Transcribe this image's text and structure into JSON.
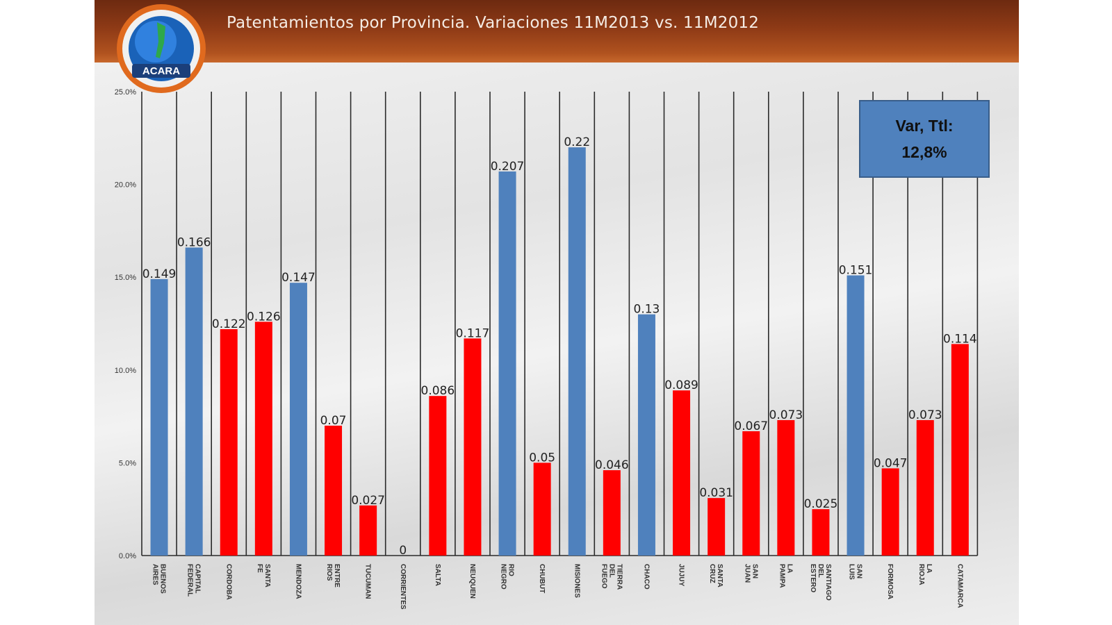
{
  "header": {
    "title": "Patentamientos por Provincia. Variaciones 11M2013 vs. 11M2012",
    "logo_text": "ACARA"
  },
  "var_box": {
    "line1": "Var, Ttl:",
    "line2": "12,8%"
  },
  "colors": {
    "blue": "#4f81bd",
    "red": "#ff0000"
  },
  "chart_data": {
    "type": "bar",
    "ylim": [
      0,
      0.25
    ],
    "yticks": [
      {
        "value": 0.0,
        "label": "0.0%"
      },
      {
        "value": 0.05,
        "label": "5.0%"
      },
      {
        "value": 0.1,
        "label": "10.0%"
      },
      {
        "value": 0.15,
        "label": "15.0%"
      },
      {
        "value": 0.2,
        "label": "20.0%"
      },
      {
        "value": 0.25,
        "label": "25.0%"
      }
    ],
    "categories": [
      {
        "label": [
          "BUENOS",
          "AIRES"
        ],
        "value": 0.149,
        "value_label": "0.149",
        "color": "blue"
      },
      {
        "label": [
          "CAPITAL",
          "FEDERAL"
        ],
        "value": 0.166,
        "value_label": "0.166",
        "color": "blue"
      },
      {
        "label": [
          "CORDOBA"
        ],
        "value": 0.122,
        "value_label": "0.122",
        "color": "red"
      },
      {
        "label": [
          "SANTA",
          "FE"
        ],
        "value": 0.126,
        "value_label": "0.126",
        "color": "red"
      },
      {
        "label": [
          "MENDOZA"
        ],
        "value": 0.147,
        "value_label": "0.147",
        "color": "blue"
      },
      {
        "label": [
          "ENTRE",
          "RIOS"
        ],
        "value": 0.07,
        "value_label": "0.07",
        "color": "red"
      },
      {
        "label": [
          "TUCUMAN"
        ],
        "value": 0.027,
        "value_label": "0.027",
        "color": "red"
      },
      {
        "label": [
          "CORRIENTES"
        ],
        "value": 0.0,
        "value_label": "0",
        "color": "red"
      },
      {
        "label": [
          "SALTA"
        ],
        "value": 0.086,
        "value_label": "0.086",
        "color": "red"
      },
      {
        "label": [
          "NEUQUEN"
        ],
        "value": 0.117,
        "value_label": "0.117",
        "color": "red"
      },
      {
        "label": [
          "RIO",
          "NEGRO"
        ],
        "value": 0.207,
        "value_label": "0.207",
        "color": "blue"
      },
      {
        "label": [
          "CHUBUT"
        ],
        "value": 0.05,
        "value_label": "0.05",
        "color": "red"
      },
      {
        "label": [
          "MISIONES"
        ],
        "value": 0.22,
        "value_label": "0.22",
        "color": "blue"
      },
      {
        "label": [
          "TIERRA",
          "DEL",
          "FUEGO"
        ],
        "value": 0.046,
        "value_label": "0.046",
        "color": "red"
      },
      {
        "label": [
          "CHACO"
        ],
        "value": 0.13,
        "value_label": "0.13",
        "color": "blue"
      },
      {
        "label": [
          "JUJUY"
        ],
        "value": 0.089,
        "value_label": "0.089",
        "color": "red"
      },
      {
        "label": [
          "SANTA",
          "CRUZ"
        ],
        "value": 0.031,
        "value_label": "0.031",
        "color": "red"
      },
      {
        "label": [
          "SAN",
          "JUAN"
        ],
        "value": 0.067,
        "value_label": "0.067",
        "color": "red"
      },
      {
        "label": [
          "LA",
          "PAMPA"
        ],
        "value": 0.073,
        "value_label": "0.073",
        "color": "red"
      },
      {
        "label": [
          "SANTIAGO",
          "DEL",
          "ESTERO"
        ],
        "value": 0.025,
        "value_label": "0.025",
        "color": "red"
      },
      {
        "label": [
          "SAN",
          "LUIS"
        ],
        "value": 0.151,
        "value_label": "0.151",
        "color": "blue"
      },
      {
        "label": [
          "FORMOSA"
        ],
        "value": 0.047,
        "value_label": "0.047",
        "color": "red"
      },
      {
        "label": [
          "LA",
          "RIOJA"
        ],
        "value": 0.073,
        "value_label": "0.073",
        "color": "red"
      },
      {
        "label": [
          "CATAMARCA"
        ],
        "value": 0.114,
        "value_label": "0.114",
        "color": "red"
      }
    ]
  }
}
